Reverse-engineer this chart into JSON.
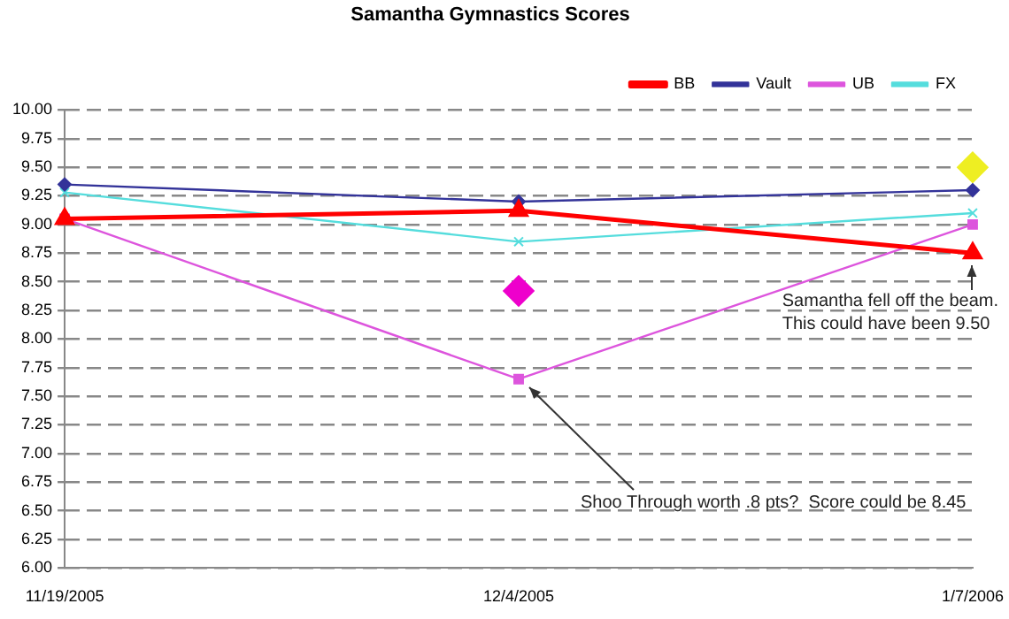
{
  "chart_data": {
    "type": "line",
    "title": "Samantha Gymnastics Scores",
    "categories": [
      "11/19/2005",
      "12/4/2005",
      "1/7/2006"
    ],
    "series": [
      {
        "name": "Vault",
        "color": "#333399",
        "marker": "diamond",
        "values": [
          9.35,
          9.2,
          9.3
        ]
      },
      {
        "name": "UB",
        "color": "#dd55dd",
        "marker": "square",
        "values": [
          9.05,
          7.65,
          9.0
        ]
      },
      {
        "name": "BB",
        "color": "#ff0000",
        "marker": "triangle",
        "values": [
          9.05,
          9.12,
          8.75
        ]
      },
      {
        "name": "FX",
        "color": "#55dddd",
        "marker": "cross",
        "values": [
          9.28,
          8.85,
          9.1
        ]
      },
      {
        "type": "scatter",
        "color": "#eeee22",
        "marker": "diamond",
        "values": [
          null,
          null,
          9.5
        ]
      },
      {
        "type": "scatter",
        "color": "#ee00cc",
        "marker": "diamond",
        "values": [
          null,
          8.42,
          null
        ]
      }
    ],
    "ylim": [
      6,
      10
    ],
    "yticks": [
      {
        "value": 6,
        "label": "6.00"
      },
      {
        "value": 6.25,
        "label": "6.25"
      },
      {
        "value": 6.5,
        "label": "6.50"
      },
      {
        "value": 6.75,
        "label": "6.75"
      },
      {
        "value": 7,
        "label": "7.00"
      },
      {
        "value": 7.25,
        "label": "7.25"
      },
      {
        "value": 7.5,
        "label": "7.50"
      },
      {
        "value": 7.75,
        "label": "7.75"
      },
      {
        "value": 8,
        "label": "8.00"
      },
      {
        "value": 8.25,
        "label": "8.25"
      },
      {
        "value": 8.5,
        "label": "8.50"
      },
      {
        "value": 8.75,
        "label": "8.75"
      },
      {
        "value": 9,
        "label": "9.00"
      },
      {
        "value": 9.25,
        "label": "9.25"
      },
      {
        "value": 9.5,
        "label": "9.50"
      },
      {
        "value": 9.75,
        "label": "9.75"
      },
      {
        "value": 10,
        "label": "10.00"
      }
    ],
    "grid": "y",
    "legend": "top right",
    "annotations": [
      {
        "text": "Samantha fell off the beam.\nThis could have been 9.50",
        "x": "1/7/2006",
        "y": 8.75
      },
      {
        "text": "Shoo Through worth .8 pts?  Score could be 8.45",
        "x": "12/4/2005",
        "y": 7.65
      }
    ]
  }
}
